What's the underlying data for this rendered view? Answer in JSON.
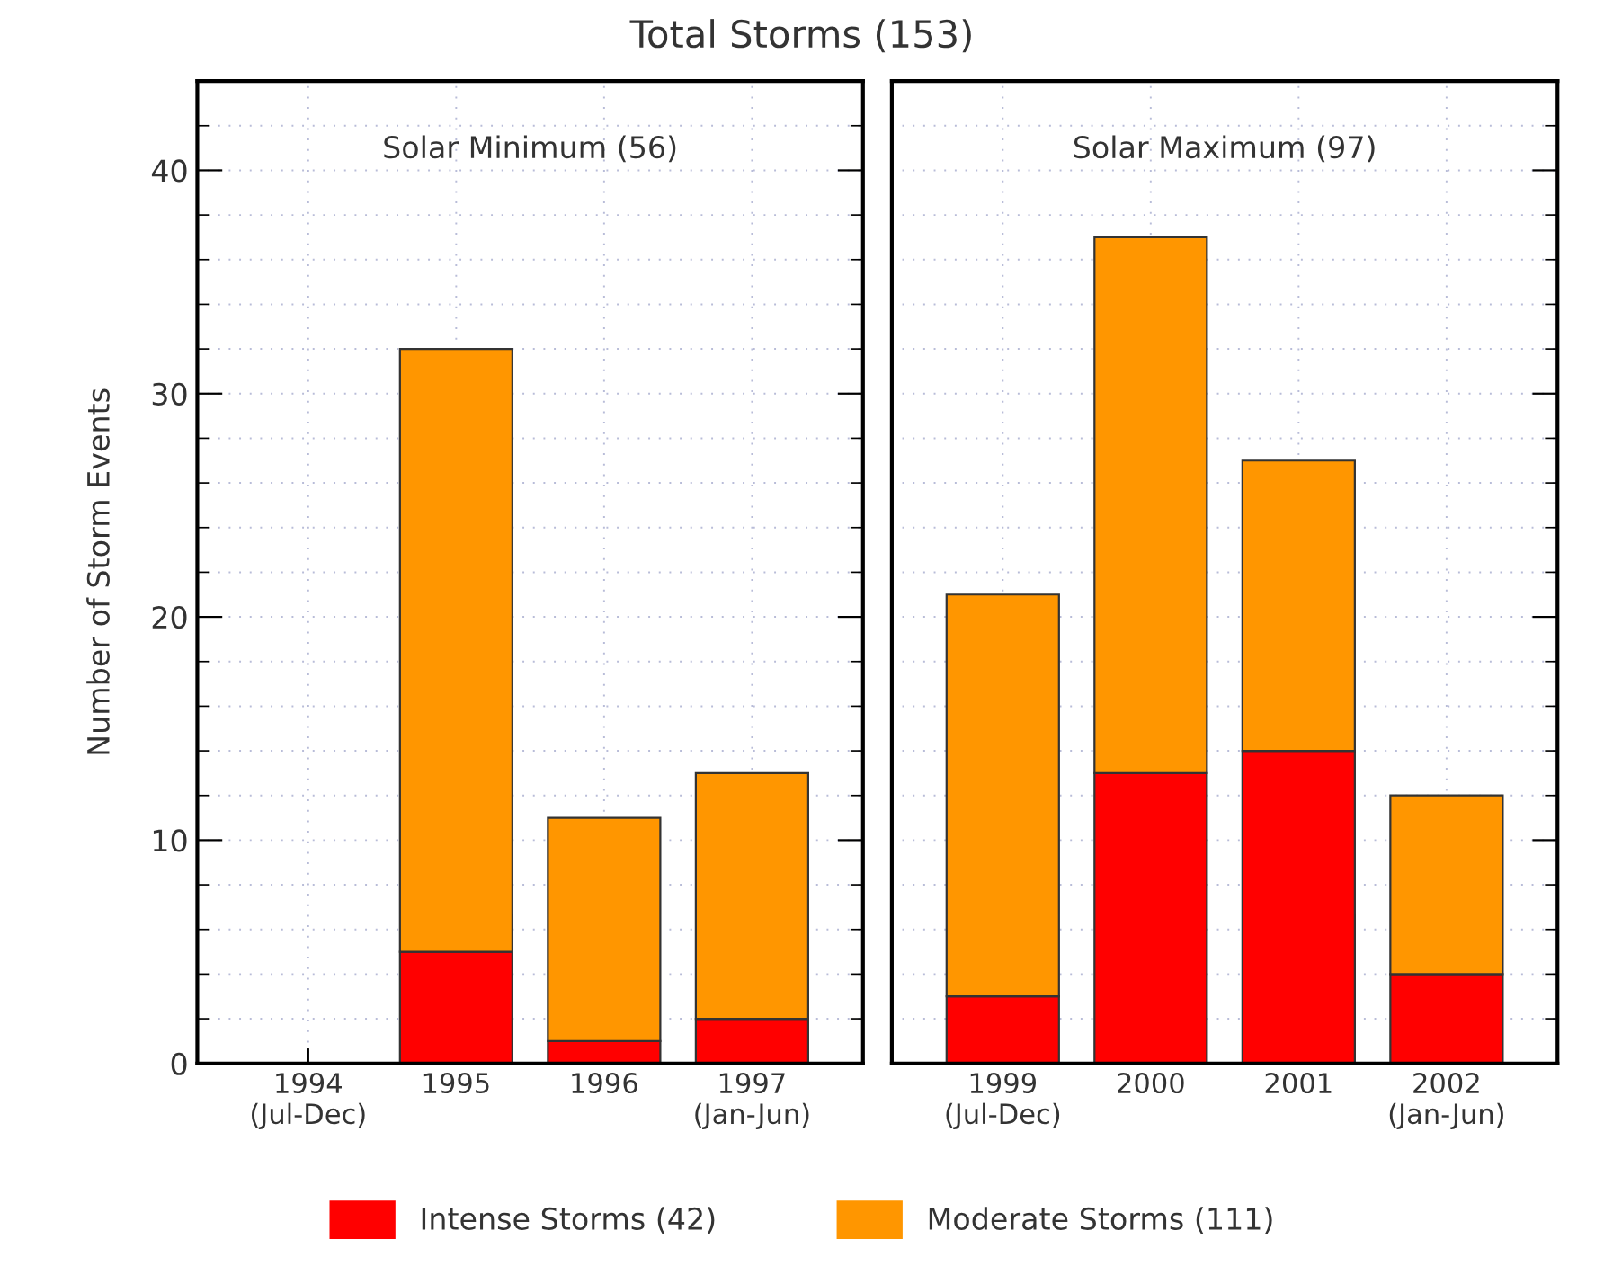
{
  "chart_data": [
    {
      "type": "bar",
      "title": "Total Storms (153)",
      "subtitle": "Solar Minimum (56)",
      "ylabel": "Number of Storm Events",
      "categories": [
        "1994\n(Jul-Dec)",
        "1995",
        "1996",
        "1997\n(Jan-Jun)"
      ],
      "stacked": true,
      "series": [
        {
          "name": "Intense Storms (42)",
          "color": "#ff0000",
          "values": [
            0,
            5,
            1,
            2
          ]
        },
        {
          "name": "Moderate Storms (111)",
          "color": "#ff9600",
          "values": [
            0,
            27,
            10,
            11
          ]
        }
      ],
      "ylim": [
        0,
        44
      ],
      "yticks": [
        0,
        10,
        20,
        30,
        40
      ],
      "grid": true,
      "legend": "bottom"
    },
    {
      "type": "bar",
      "subtitle": "Solar Maximum (97)",
      "categories": [
        "1999\n(Jul-Dec)",
        "2000",
        "2001",
        "2002\n(Jan-Jun)"
      ],
      "stacked": true,
      "series": [
        {
          "color": "#ff0000",
          "values": [
            3,
            13,
            14,
            4
          ]
        },
        {
          "color": "#ff9600",
          "values": [
            18,
            24,
            13,
            8
          ]
        }
      ],
      "ylim": [
        0,
        44
      ],
      "yticks": [
        0,
        10,
        20,
        30,
        40
      ],
      "grid": true,
      "tick_labels": "x"
    }
  ]
}
